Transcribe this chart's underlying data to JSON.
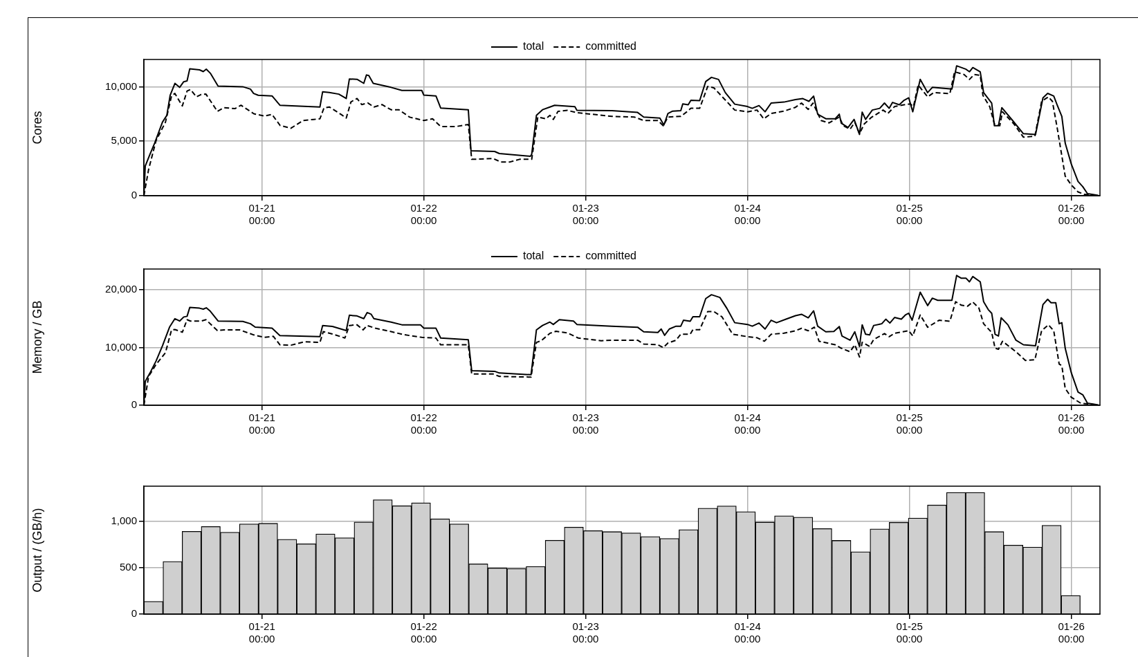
{
  "chart_data": [
    {
      "type": "line",
      "ylabel": "Cores",
      "xlim": [
        "--01-20T06:30",
        "--01-26T04:15"
      ],
      "xticks": [
        {
          "value": "--01-21T00:00",
          "label": "01-21\n00:00"
        },
        {
          "value": "--01-22T00:00",
          "label": "01-22\n00:00"
        },
        {
          "value": "--01-23T00:00",
          "label": "01-23\n00:00"
        },
        {
          "value": "--01-24T00:00",
          "label": "01-24\n00:00"
        },
        {
          "value": "--01-25T00:00",
          "label": "01-25\n00:00"
        },
        {
          "value": "--01-26T00:00",
          "label": "01-26\n00:00"
        }
      ],
      "ylim": [
        0,
        12500
      ],
      "yticks": [
        {
          "value": 0,
          "label": "0"
        },
        {
          "value": 5000,
          "label": "5,000"
        },
        {
          "value": 10000,
          "label": "10,000"
        }
      ],
      "grid": true,
      "legend": "top",
      "marker": "none",
      "series": [
        {
          "name": "total",
          "color": "#000000",
          "line_style": "solid",
          "x": [
            "--01-20T06:30",
            "--01-20T06:42",
            "--01-20T07:24",
            "--01-20T08:06",
            "--01-20T09:15",
            "--01-20T09:54",
            "--01-20T10:24",
            "--01-20T11:06",
            "--01-20T11:48",
            "--01-20T12:24",
            "--01-20T12:54",
            "--01-20T13:18",
            "--01-20T14:45",
            "--01-20T15:18",
            "--01-20T15:45",
            "--01-20T16:21",
            "--01-20T17:30",
            "--01-20T21:10",
            "--01-20T22:18",
            "--01-20T22:46",
            "--01-20T23:27",
            "--01-21T01:30",
            "--01-21T02:40",
            "--01-21T08:36",
            "--01-21T09:00",
            "--01-21T10:00",
            "--01-21T11:24",
            "--01-21T12:30",
            "--01-21T12:58",
            "--01-21T14:06",
            "--01-21T15:06",
            "--01-21T15:30",
            "--01-21T15:51",
            "--01-21T16:30",
            "--01-21T19:09",
            "--01-21T20:45",
            "--01-21T23:42",
            "--01-22T00:00",
            "--01-22T01:48",
            "--01-22T02:30",
            "--01-22T06:36",
            "--01-22T07:00",
            "--01-22T10:30",
            "--01-22T11:12",
            "--01-22T15:48",
            "--01-22T16:00",
            "--01-22T16:42",
            "--01-22T17:36",
            "--01-22T18:42",
            "--01-22T19:24",
            "--01-22T22:24",
            "--01-22T22:42",
            "--01-23T03:54",
            "--01-23T07:42",
            "--01-23T08:36",
            "--01-23T11:00",
            "--01-23T11:36",
            "--01-23T12:12",
            "--01-23T12:54",
            "--01-23T14:06",
            "--01-23T14:24",
            "--01-23T15:12",
            "--01-23T15:36",
            "--01-23T16:54",
            "--01-23T17:48",
            "--01-23T18:39",
            "--01-23T19:42",
            "--01-23T20:42",
            "--01-23T22:06",
            "--01-24T00:00",
            "--01-24T00:42",
            "--01-24T01:42",
            "--01-24T02:36",
            "--01-24T03:30",
            "--01-24T05:24",
            "--01-24T07:06",
            "--01-24T08:12",
            "--01-24T09:06",
            "--01-24T09:48",
            "--01-24T10:24",
            "--01-24T11:36",
            "--01-24T13:00",
            "--01-24T13:36",
            "--01-24T13:54",
            "--01-24T14:54",
            "--01-24T15:48",
            "--01-24T16:36",
            "--01-24T17:00",
            "--01-24T17:30",
            "--01-24T18:30",
            "--01-24T19:36",
            "--01-24T20:18",
            "--01-24T21:00",
            "--01-24T21:30",
            "--01-24T22:30",
            "--01-24T23:12",
            "--01-24T23:54",
            "--01-25T00:30",
            "--01-25T01:36",
            "--01-25T02:42",
            "--01-25T03:24",
            "--01-25T06:18",
            "--01-25T07:00",
            "--01-25T08:24",
            "--01-25T08:54",
            "--01-25T09:24",
            "--01-25T10:30",
            "--01-25T11:00",
            "--01-25T12:12",
            "--01-25T12:36",
            "--01-25T13:12",
            "--01-25T13:42",
            "--01-25T15:18",
            "--01-25T16:54",
            "--01-25T18:42",
            "--01-25T19:48",
            "--01-25T20:30",
            "--01-25T21:24",
            "--01-25T21:54",
            "--01-25T22:36",
            "--01-25T23:06",
            "--01-26T00:00",
            "--01-26T01:00",
            "--01-26T01:42",
            "--01-26T02:24",
            "--01-26T04:00"
          ],
          "values": [
            0,
            2720,
            3800,
            4830,
            6750,
            7370,
            9230,
            10310,
            9940,
            10460,
            10530,
            11640,
            11550,
            11390,
            11610,
            11240,
            10060,
            10000,
            9780,
            9380,
            9220,
            9160,
            8300,
            8140,
            9540,
            9470,
            9320,
            8920,
            10710,
            10680,
            10310,
            11080,
            11020,
            10310,
            9940,
            9660,
            9660,
            9230,
            9160,
            8050,
            7890,
            4120,
            4060,
            3870,
            3620,
            3810,
            7370,
            7890,
            8140,
            8300,
            8170,
            7830,
            7800,
            7640,
            7220,
            7120,
            6490,
            7540,
            7760,
            7800,
            8430,
            8340,
            8750,
            8720,
            10480,
            10860,
            10670,
            9460,
            8400,
            8180,
            8020,
            8270,
            7700,
            8500,
            8590,
            8820,
            8910,
            8660,
            9140,
            7480,
            7060,
            7060,
            7480,
            6650,
            6260,
            7000,
            5620,
            7670,
            7000,
            7860,
            8020,
            8500,
            8020,
            8560,
            8340,
            8750,
            8980,
            7700,
            10670,
            9460,
            9940,
            9780,
            11920,
            11600,
            11370,
            11760,
            11370,
            9460,
            8500,
            6420,
            6420,
            8080,
            6900,
            5690,
            5620,
            8980,
            9390,
            9140,
            8340,
            7280,
            4820,
            2910,
            1310,
            830,
            190,
            30
          ]
        },
        {
          "name": "committed",
          "color": "#000000",
          "line_style": "dashed",
          "x": [
            "--01-20T06:30",
            "--01-20T07:12",
            "--01-20T08:18",
            "--01-20T09:42",
            "--01-20T10:36",
            "--01-20T11:06",
            "--01-20T12:12",
            "--01-20T12:54",
            "--01-20T13:24",
            "--01-20T14:18",
            "--01-20T15:00",
            "--01-20T15:42",
            "--01-20T17:24",
            "--01-20T18:24",
            "--01-20T20:00",
            "--01-20T20:54",
            "--01-20T22:48",
            "--01-21T00:24",
            "--01-21T01:30",
            "--01-21T02:42",
            "--01-21T04:18",
            "--01-21T06:06",
            "--01-21T07:42",
            "--01-21T08:36",
            "--01-21T09:12",
            "--01-21T10:00",
            "--01-21T11:48",
            "--01-21T12:30",
            "--01-21T13:12",
            "--01-21T14:06",
            "--01-21T14:48",
            "--01-21T15:42",
            "--01-21T16:36",
            "--01-21T17:48",
            "--01-21T19:09",
            "--01-21T20:18",
            "--01-21T21:54",
            "--01-22T00:00",
            "--01-22T01:18",
            "--01-22T02:30",
            "--01-22T04:48",
            "--01-22T06:36",
            "--01-22T07:06",
            "--01-22T10:18",
            "--01-22T11:24",
            "--01-22T12:48",
            "--01-22T14:12",
            "--01-22T16:00",
            "--01-22T16:54",
            "--01-22T18:06",
            "--01-22T18:42",
            "--01-22T19:12",
            "--01-22T19:54",
            "--01-22T21:18",
            "--01-22T22:42",
            "--01-23T03:54",
            "--01-23T07:12",
            "--01-23T08:36",
            "--01-23T10:42",
            "--01-23T11:30",
            "--01-23T12:12",
            "--01-23T14:06",
            "--01-23T15:00",
            "--01-23T15:36",
            "--01-23T16:54",
            "--01-23T18:06",
            "--01-23T19:00",
            "--01-23T20:24",
            "--01-23T22:06",
            "--01-24T00:00",
            "--01-24T01:24",
            "--01-24T02:24",
            "--01-24T03:30",
            "--01-24T05:24",
            "--01-24T07:06",
            "--01-24T08:00",
            "--01-24T09:00",
            "--01-24T09:42",
            "--01-24T10:54",
            "--01-24T12:06",
            "--01-24T13:36",
            "--01-24T14:12",
            "--01-24T15:12",
            "--01-24T15:54",
            "--01-24T16:36",
            "--01-24T17:18",
            "--01-24T18:18",
            "--01-24T20:06",
            "--01-24T20:48",
            "--01-24T21:48",
            "--01-24T23:12",
            "--01-25T00:06",
            "--01-25T00:36",
            "--01-25T01:18",
            "--01-25T02:42",
            "--01-25T03:36",
            "--01-25T06:00",
            "--01-25T06:42",
            "--01-25T08:06",
            "--01-25T08:54",
            "--01-25T09:36",
            "--01-25T10:30",
            "--01-25T10:54",
            "--01-25T11:54",
            "--01-25T12:36",
            "--01-25T13:24",
            "--01-25T13:48",
            "--01-25T15:30",
            "--01-25T16:54",
            "--01-25T18:36",
            "--01-25T19:36",
            "--01-25T20:36",
            "--01-25T21:12",
            "--01-25T21:54",
            "--01-25T23:06",
            "--01-26T00:00",
            "--01-26T01:00",
            "--01-26T01:54",
            "--01-26T04:00"
          ],
          "values": [
            0,
            2410,
            5050,
            6750,
            9160,
            9380,
            8240,
            9600,
            9750,
            9070,
            9290,
            9320,
            7740,
            8080,
            7990,
            8300,
            7520,
            7310,
            7460,
            6440,
            6190,
            6900,
            7000,
            7060,
            8050,
            8140,
            7430,
            7120,
            8610,
            8920,
            8360,
            8510,
            8140,
            8360,
            7890,
            7890,
            7210,
            6900,
            7060,
            6350,
            6350,
            6530,
            3340,
            3410,
            3100,
            3100,
            3340,
            3340,
            7210,
            7060,
            7370,
            7000,
            7740,
            7830,
            7620,
            7280,
            7220,
            6900,
            6900,
            6420,
            7220,
            7280,
            7700,
            8020,
            8020,
            10030,
            9900,
            8980,
            7860,
            7700,
            7860,
            7060,
            7540,
            7760,
            8110,
            8500,
            7920,
            8500,
            6900,
            6680,
            7220,
            6420,
            6100,
            6740,
            5690,
            6580,
            7160,
            7860,
            7540,
            8180,
            8340,
            8430,
            8180,
            10160,
            9070,
            9460,
            9360,
            11370,
            11120,
            10670,
            11120,
            11050,
            9200,
            8180,
            6580,
            6420,
            7700,
            6580,
            5370,
            5460,
            8660,
            9070,
            8660,
            6260,
            1790,
            990,
            350,
            130,
            30
          ]
        }
      ]
    },
    {
      "type": "line",
      "ylabel": "Memory / GB",
      "xlim": [
        "--01-20T06:30",
        "--01-26T04:15"
      ],
      "xticks": [
        {
          "value": "--01-21T00:00",
          "label": "01-21\n00:00"
        },
        {
          "value": "--01-22T00:00",
          "label": "01-22\n00:00"
        },
        {
          "value": "--01-23T00:00",
          "label": "01-23\n00:00"
        },
        {
          "value": "--01-24T00:00",
          "label": "01-24\n00:00"
        },
        {
          "value": "--01-25T00:00",
          "label": "01-25\n00:00"
        },
        {
          "value": "--01-26T00:00",
          "label": "01-26\n00:00"
        }
      ],
      "ylim": [
        0,
        23600
      ],
      "yticks": [
        {
          "value": 0,
          "label": "0"
        },
        {
          "value": 10000,
          "label": "10,000"
        },
        {
          "value": 20000,
          "label": "20,000"
        }
      ],
      "grid": true,
      "legend": "top",
      "marker": "none",
      "series": [
        {
          "name": "total",
          "color": "#000000",
          "line_style": "solid",
          "x": [
            "--01-20T06:30",
            "--01-20T06:42",
            "--01-20T07:24",
            "--01-20T08:18",
            "--01-20T09:15",
            "--01-20T10:18",
            "--01-20T11:06",
            "--01-20T11:48",
            "--01-20T12:24",
            "--01-20T12:54",
            "--01-20T13:18",
            "--01-20T14:45",
            "--01-20T15:18",
            "--01-20T15:45",
            "--01-20T16:21",
            "--01-20T17:30",
            "--01-20T21:10",
            "--01-20T22:18",
            "--01-20T23:00",
            "--01-21T01:30",
            "--01-21T02:40",
            "--01-21T08:36",
            "--01-21T09:00",
            "--01-21T10:27",
            "--01-21T12:30",
            "--01-21T12:58",
            "--01-21T14:06",
            "--01-21T15:06",
            "--01-21T15:36",
            "--01-21T16:12",
            "--01-21T16:36",
            "--01-21T19:09",
            "--01-21T20:45",
            "--01-21T23:30",
            "--01-22T00:00",
            "--01-22T01:48",
            "--01-22T02:30",
            "--01-22T06:36",
            "--01-22T07:06",
            "--01-22T10:30",
            "--01-22T11:12",
            "--01-22T15:54",
            "--01-22T16:42",
            "--01-22T17:36",
            "--01-22T18:42",
            "--01-22T19:12",
            "--01-22T20:06",
            "--01-22T22:12",
            "--01-22T22:42",
            "--01-23T03:54",
            "--01-23T07:42",
            "--01-23T08:36",
            "--01-23T10:42",
            "--01-23T11:12",
            "--01-23T11:42",
            "--01-23T12:24",
            "--01-23T13:24",
            "--01-23T14:06",
            "--01-23T14:30",
            "--01-23T15:30",
            "--01-23T15:54",
            "--01-23T16:54",
            "--01-23T17:48",
            "--01-23T18:39",
            "--01-23T19:54",
            "--01-23T20:54",
            "--01-23T22:06",
            "--01-24T00:00",
            "--01-24T00:42",
            "--01-24T01:42",
            "--01-24T02:36",
            "--01-24T03:30",
            "--01-24T04:18",
            "--01-24T05:42",
            "--01-24T07:06",
            "--01-24T08:00",
            "--01-24T09:00",
            "--01-24T09:48",
            "--01-24T10:24",
            "--01-24T11:36",
            "--01-24T12:48",
            "--01-24T13:36",
            "--01-24T14:00",
            "--01-24T15:12",
            "--01-24T15:54",
            "--01-24T16:36",
            "--01-24T17:00",
            "--01-24T17:30",
            "--01-24T18:06",
            "--01-24T18:42",
            "--01-24T19:54",
            "--01-24T20:30",
            "--01-24T21:06",
            "--01-24T21:48",
            "--01-24T22:48",
            "--01-24T23:24",
            "--01-24T23:54",
            "--01-25T00:24",
            "--01-25T01:36",
            "--01-25T02:42",
            "--01-25T03:24",
            "--01-25T04:12",
            "--01-25T06:18",
            "--01-25T07:00",
            "--01-25T07:42",
            "--01-25T08:24",
            "--01-25T08:54",
            "--01-25T09:24",
            "--01-25T10:30",
            "--01-25T11:00",
            "--01-25T11:42",
            "--01-25T12:12",
            "--01-25T12:42",
            "--01-25T13:12",
            "--01-25T13:36",
            "--01-25T14:36",
            "--01-25T15:48",
            "--01-25T16:54",
            "--01-25T18:42",
            "--01-25T19:48",
            "--01-25T20:30",
            "--01-25T21:00",
            "--01-25T21:42",
            "--01-25T22:12",
            "--01-25T22:36",
            "--01-25T23:06",
            "--01-26T00:00",
            "--01-26T01:00",
            "--01-26T01:42",
            "--01-26T02:24",
            "--01-26T04:00"
          ],
          "values": [
            0,
            4120,
            5590,
            7650,
            10290,
            13530,
            15000,
            14590,
            15290,
            15410,
            16940,
            16820,
            16650,
            16880,
            16290,
            14590,
            14530,
            14120,
            13530,
            13350,
            12060,
            11880,
            13820,
            13650,
            12940,
            15590,
            15470,
            15000,
            16060,
            15760,
            15000,
            14410,
            13940,
            13940,
            13350,
            13350,
            11650,
            11350,
            6000,
            5880,
            5590,
            5290,
            13060,
            13820,
            14410,
            14000,
            14820,
            14590,
            14000,
            13700,
            13520,
            12730,
            12610,
            13210,
            12120,
            13210,
            13700,
            13700,
            14730,
            14550,
            15330,
            15330,
            18480,
            19150,
            18670,
            16850,
            14300,
            14000,
            13700,
            14240,
            13210,
            14730,
            14300,
            14910,
            15520,
            15760,
            15150,
            16360,
            13700,
            12730,
            12790,
            13640,
            12000,
            11270,
            12730,
            10180,
            13940,
            12300,
            12180,
            13820,
            14120,
            14910,
            14240,
            15210,
            14910,
            15640,
            15940,
            14730,
            19580,
            17270,
            18550,
            18180,
            18180,
            22480,
            22000,
            22000,
            21390,
            22300,
            21390,
            17940,
            16550,
            15940,
            12300,
            12000,
            15150,
            13940,
            11270,
            10480,
            10300,
            17450,
            18360,
            17760,
            17760,
            14120,
            14300,
            9880,
            5640,
            2300,
            1820,
            360,
            60
          ]
        },
        {
          "name": "committed",
          "color": "#000000",
          "line_style": "dashed",
          "x": [
            "--01-20T06:30",
            "--01-20T07:12",
            "--01-20T08:18",
            "--01-20T09:42",
            "--01-20T10:36",
            "--01-20T11:06",
            "--01-20T12:12",
            "--01-20T12:54",
            "--01-20T13:24",
            "--01-20T15:00",
            "--01-20T15:42",
            "--01-20T17:24",
            "--01-20T18:24",
            "--01-20T20:42",
            "--01-20T22:48",
            "--01-21T00:24",
            "--01-21T01:42",
            "--01-21T02:40",
            "--01-21T04:18",
            "--01-21T06:18",
            "--01-21T08:36",
            "--01-21T09:06",
            "--01-21T10:27",
            "--01-21T12:18",
            "--01-21T12:58",
            "--01-21T14:06",
            "--01-21T15:00",
            "--01-21T15:36",
            "--01-21T16:48",
            "--01-21T19:09",
            "--01-21T21:00",
            "--01-21T23:42",
            "--01-22T01:48",
            "--01-22T02:30",
            "--01-22T06:36",
            "--01-22T07:06",
            "--01-22T10:18",
            "--01-22T11:12",
            "--01-22T15:54",
            "--01-22T16:42",
            "--01-22T17:24",
            "--01-22T18:42",
            "--01-22T19:36",
            "--01-22T21:18",
            "--01-22T22:54",
            "--01-23T02:18",
            "--01-23T03:54",
            "--01-23T07:42",
            "--01-23T08:36",
            "--01-23T10:42",
            "--01-23T11:30",
            "--01-23T12:12",
            "--01-23T13:24",
            "--01-23T14:06",
            "--01-23T15:30",
            "--01-23T15:54",
            "--01-23T16:54",
            "--01-23T18:06",
            "--01-23T19:00",
            "--01-23T20:12",
            "--01-23T21:48",
            "--01-24T00:00",
            "--01-24T01:24",
            "--01-24T02:30",
            "--01-24T03:30",
            "--01-24T05:24",
            "--01-24T07:06",
            "--01-24T08:00",
            "--01-24T09:00",
            "--01-24T09:54",
            "--01-24T10:36",
            "--01-24T13:00",
            "--01-24T13:54",
            "--01-24T15:12",
            "--01-24T15:54",
            "--01-24T16:36",
            "--01-24T17:00",
            "--01-24T18:06",
            "--01-24T18:42",
            "--01-24T20:18",
            "--01-24T21:00",
            "--01-24T21:48",
            "--01-24T23:54",
            "--01-25T00:30",
            "--01-25T01:36",
            "--01-25T02:42",
            "--01-25T04:24",
            "--01-25T06:00",
            "--01-25T06:51",
            "--01-25T07:42",
            "--01-25T08:36",
            "--01-25T09:24",
            "--01-25T10:18",
            "--01-25T11:00",
            "--01-25T12:12",
            "--01-25T12:42",
            "--01-25T13:12",
            "--01-25T13:48",
            "--01-25T15:48",
            "--01-25T17:12",
            "--01-25T18:36",
            "--01-25T19:36",
            "--01-25T20:36",
            "--01-25T21:24",
            "--01-25T22:12",
            "--01-25T22:36",
            "--01-25T23:06",
            "--01-26T00:00",
            "--01-26T01:24",
            "--01-26T04:00"
          ],
          "values": [
            0,
            5000,
            7060,
            9120,
            13060,
            13120,
            12650,
            14820,
            14590,
            14590,
            14820,
            12940,
            13060,
            13060,
            12180,
            11760,
            11940,
            10470,
            10410,
            11000,
            10880,
            12760,
            12350,
            11650,
            13820,
            13940,
            13060,
            13820,
            13350,
            12760,
            12240,
            11760,
            11650,
            10470,
            10470,
            5410,
            5410,
            5000,
            4880,
            10880,
            11180,
            12470,
            12820,
            12530,
            11650,
            11180,
            11270,
            11270,
            10610,
            10480,
            10000,
            10790,
            11270,
            12300,
            12300,
            13090,
            13090,
            16240,
            16240,
            15330,
            12300,
            11880,
            11700,
            11090,
            12300,
            12480,
            12910,
            13330,
            12910,
            13520,
            11090,
            10480,
            9880,
            9270,
            10480,
            8360,
            10910,
            10180,
            11390,
            12420,
            11880,
            12480,
            12910,
            12000,
            15640,
            13520,
            14730,
            14550,
            17940,
            17330,
            17150,
            17880,
            16850,
            14120,
            12610,
            9880,
            9700,
            11090,
            9270,
            7760,
            7880,
            12910,
            13940,
            12910,
            7150,
            6850,
            2910,
            1390,
            360,
            60
          ]
        }
      ]
    },
    {
      "type": "bar",
      "ylabel": "Output / (GB/h)",
      "xlim": [
        "--01-20T06:30",
        "--01-26T04:15"
      ],
      "xticks": [
        {
          "value": "--01-21T00:00",
          "label": "01-21\n00:00"
        },
        {
          "value": "--01-22T00:00",
          "label": "01-22\n00:00"
        },
        {
          "value": "--01-23T00:00",
          "label": "01-23\n00:00"
        },
        {
          "value": "--01-24T00:00",
          "label": "01-24\n00:00"
        },
        {
          "value": "--01-25T00:00",
          "label": "01-25\n00:00"
        },
        {
          "value": "--01-26T00:00",
          "label": "01-26\n00:00"
        }
      ],
      "ylim": [
        0,
        1375
      ],
      "yticks": [
        {
          "value": 0,
          "label": "0"
        },
        500,
        {
          "value": 1000,
          "label": "1,000"
        }
      ],
      "grid": true,
      "color": "#cfcfcf",
      "x": [
        "--01-20T07:55",
        "--01-20T10:45",
        "--01-20T13:35",
        "--01-20T16:25",
        "--01-20T19:15",
        "--01-20T22:05",
        "--01-21T00:55",
        "--01-21T03:45",
        "--01-21T06:35",
        "--01-21T09:25",
        "--01-21T12:15",
        "--01-21T15:05",
        "--01-21T17:55",
        "--01-21T20:45",
        "--01-21T23:35",
        "--01-22T02:25",
        "--01-22T05:15",
        "--01-22T08:05",
        "--01-22T10:55",
        "--01-22T13:45",
        "--01-22T16:35",
        "--01-22T19:25",
        "--01-22T22:15",
        "--01-23T01:05",
        "--01-23T03:55",
        "--01-23T06:45",
        "--01-23T09:35",
        "--01-23T12:25",
        "--01-23T15:15",
        "--01-23T18:05",
        "--01-23T20:55",
        "--01-23T23:45",
        "--01-24T02:35",
        "--01-24T05:25",
        "--01-24T08:15",
        "--01-24T11:05",
        "--01-24T13:55",
        "--01-24T16:45",
        "--01-24T19:35",
        "--01-24T22:25",
        "--01-25T01:15",
        "--01-25T04:05",
        "--01-25T06:55",
        "--01-25T09:45",
        "--01-25T12:35",
        "--01-25T15:25",
        "--01-25T18:15",
        "--01-25T21:05",
        "--01-25T23:55"
      ],
      "values": [
        137,
        567,
        890,
        942,
        880,
        969,
        976,
        804,
        756,
        862,
        821,
        990,
        1230,
        1165,
        1196,
        1024,
        969,
        540,
        495,
        490,
        512,
        794,
        935,
        897,
        887,
        873,
        834,
        813,
        908,
        1138,
        1163,
        1102,
        989,
        1057,
        1042,
        919,
        792,
        671,
        915,
        986,
        1032,
        1173,
        1307,
        1307,
        887,
        742,
        721,
        954,
        201
      ]
    }
  ]
}
